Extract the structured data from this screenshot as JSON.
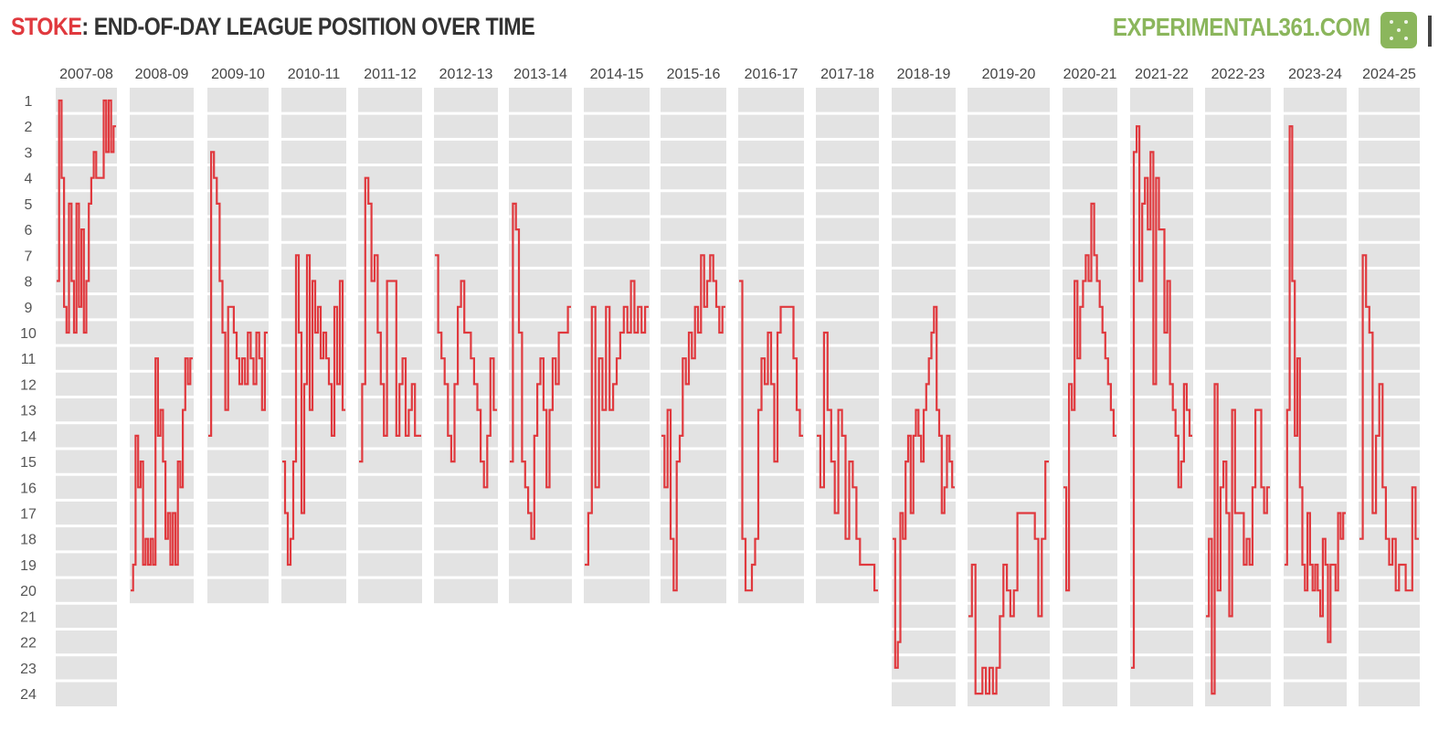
{
  "header": {
    "team": "STOKE",
    "title_rest": ": END-OF-DAY LEAGUE POSITION OVER TIME",
    "brand": "EXPERIMENTAL361.COM",
    "logo_icon": "pitch-icon"
  },
  "colors": {
    "accent": "#e0393e",
    "brand": "#8bb65c",
    "band": "#e3e3e3",
    "line": "#e0393e",
    "text": "#444444"
  },
  "chart_data": {
    "type": "line",
    "title": "STOKE: END-OF-DAY LEAGUE POSITION OVER TIME",
    "xlabel": "",
    "ylabel": "",
    "y_axis": {
      "min": 1,
      "max": 24,
      "inverted": true,
      "ticks": [
        1,
        2,
        3,
        4,
        5,
        6,
        7,
        8,
        9,
        10,
        11,
        12,
        13,
        14,
        15,
        16,
        17,
        18,
        19,
        20,
        21,
        22,
        23,
        24
      ]
    },
    "grid": true,
    "seasons": [
      {
        "season": "2007-08",
        "league_size": 24,
        "positions": [
          8,
          1,
          4,
          9,
          10,
          5,
          8,
          10,
          5,
          9,
          6,
          10,
          8,
          5,
          4,
          3,
          4,
          4,
          4,
          1,
          3,
          1,
          3,
          2
        ]
      },
      {
        "season": "2008-09",
        "league_size": 20,
        "positions": [
          20,
          19,
          14,
          16,
          15,
          19,
          18,
          19,
          18,
          19,
          11,
          14,
          13,
          15,
          18,
          17,
          19,
          17,
          19,
          15,
          16,
          13,
          11,
          12,
          11
        ]
      },
      {
        "season": "2009-10",
        "league_size": 20,
        "positions": [
          14,
          3,
          4,
          5,
          8,
          10,
          13,
          9,
          9,
          10,
          11,
          12,
          11,
          12,
          10,
          11,
          12,
          10,
          11,
          13,
          10
        ]
      },
      {
        "season": "2010-11",
        "league_size": 20,
        "positions": [
          15,
          17,
          19,
          18,
          15,
          7,
          10,
          17,
          12,
          7,
          13,
          8,
          10,
          9,
          11,
          10,
          11,
          12,
          14,
          9,
          12,
          8,
          13
        ]
      },
      {
        "season": "2011-12",
        "league_size": 20,
        "positions": [
          15,
          12,
          4,
          5,
          8,
          7,
          10,
          12,
          14,
          8,
          8,
          8,
          14,
          12,
          11,
          14,
          13,
          12,
          14,
          14
        ]
      },
      {
        "season": "2012-13",
        "league_size": 20,
        "positions": [
          7,
          10,
          11,
          12,
          14,
          15,
          12,
          9,
          8,
          10,
          10,
          11,
          12,
          13,
          15,
          16,
          14,
          11,
          13
        ]
      },
      {
        "season": "2013-14",
        "league_size": 20,
        "positions": [
          15,
          5,
          6,
          10,
          15,
          16,
          17,
          18,
          14,
          12,
          11,
          13,
          16,
          13,
          11,
          12,
          10,
          10,
          10,
          9
        ]
      },
      {
        "season": "2014-15",
        "league_size": 20,
        "positions": [
          19,
          17,
          9,
          16,
          11,
          13,
          9,
          13,
          12,
          11,
          10,
          9,
          10,
          8,
          10,
          9,
          10,
          9
        ]
      },
      {
        "season": "2015-16",
        "league_size": 20,
        "positions": [
          14,
          16,
          13,
          18,
          20,
          15,
          14,
          11,
          12,
          10,
          11,
          9,
          10,
          7,
          9,
          8,
          7,
          8,
          9,
          10,
          9
        ]
      },
      {
        "season": "2016-17",
        "league_size": 20,
        "positions": [
          8,
          18,
          20,
          20,
          19,
          18,
          13,
          11,
          12,
          10,
          12,
          15,
          10,
          9,
          9,
          9,
          9,
          11,
          13,
          14
        ]
      },
      {
        "season": "2017-18",
        "league_size": 20,
        "positions": [
          14,
          16,
          10,
          13,
          15,
          17,
          13,
          14,
          18,
          15,
          16,
          18,
          19,
          19,
          19,
          19,
          20
        ]
      },
      {
        "season": "2018-19",
        "league_size": 24,
        "positions": [
          18,
          23,
          22,
          17,
          18,
          15,
          14,
          17,
          14,
          13,
          14,
          15,
          13,
          12,
          11,
          10,
          9,
          13,
          14,
          17,
          16,
          14,
          15,
          16
        ]
      },
      {
        "season": "2019-20",
        "league_size": 24,
        "positions": [
          21,
          19,
          24,
          24,
          23,
          24,
          23,
          24,
          23,
          21,
          19,
          20,
          21,
          20,
          17,
          17,
          17,
          17,
          17,
          18,
          21,
          18,
          15
        ]
      },
      {
        "season": "2020-21",
        "league_size": 24,
        "positions": [
          16,
          20,
          12,
          13,
          8,
          11,
          9,
          8,
          7,
          8,
          5,
          7,
          8,
          9,
          10,
          11,
          12,
          13,
          14
        ]
      },
      {
        "season": "2021-22",
        "league_size": 24,
        "positions": [
          23,
          3,
          2,
          8,
          5,
          4,
          6,
          3,
          12,
          4,
          6,
          6,
          10,
          8,
          12,
          13,
          14,
          16,
          15,
          12,
          13,
          14
        ]
      },
      {
        "season": "2022-23",
        "league_size": 24,
        "positions": [
          21,
          18,
          24,
          12,
          20,
          16,
          15,
          17,
          21,
          13,
          17,
          17,
          17,
          19,
          18,
          19,
          16,
          13,
          13,
          16,
          17,
          16
        ]
      },
      {
        "season": "2023-24",
        "league_size": 24,
        "positions": [
          19,
          13,
          2,
          8,
          14,
          11,
          16,
          19,
          20,
          17,
          19,
          20,
          19,
          20,
          21,
          18,
          19,
          22,
          19,
          19,
          20,
          17,
          18,
          17
        ]
      },
      {
        "season": "2024-25",
        "league_size": 24,
        "positions": [
          18,
          7,
          9,
          10,
          17,
          14,
          12,
          16,
          18,
          19,
          18,
          20,
          19,
          19,
          20,
          20,
          16,
          18
        ]
      }
    ]
  }
}
